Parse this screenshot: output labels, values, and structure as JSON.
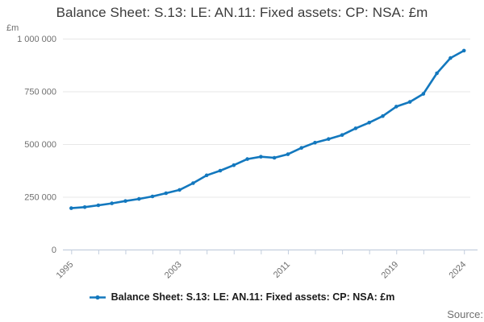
{
  "title": "Balance Sheet: S.13: LE: AN.11: Fixed assets: CP: NSA: £m",
  "y_axis_unit": "£m",
  "legend": {
    "label": "Balance Sheet: S.13: LE: AN.11: Fixed assets: CP: NSA: £m",
    "marker": "line-with-dot-icon"
  },
  "source_label": "Source:",
  "colors": {
    "line": "#1378be",
    "grid": "#e7e7e7",
    "axis": "#c3cede",
    "tick_text": "#6f6f6f",
    "title_text": "#3b3b3b"
  },
  "chart_data": {
    "type": "line",
    "title": "Balance Sheet: S.13: LE: AN.11: Fixed assets: CP: NSA: £m",
    "xlabel": "",
    "ylabel": "£m",
    "ylim": [
      0,
      1000000
    ],
    "grid": true,
    "legend_position": "bottom",
    "x": [
      1995,
      1996,
      1997,
      1998,
      1999,
      2000,
      2001,
      2002,
      2003,
      2004,
      2005,
      2006,
      2007,
      2008,
      2009,
      2010,
      2011,
      2012,
      2013,
      2014,
      2015,
      2016,
      2017,
      2018,
      2019,
      2020,
      2021,
      2022,
      2023,
      2024
    ],
    "values": [
      196000,
      201000,
      210000,
      219000,
      230000,
      240000,
      252000,
      267000,
      283000,
      315000,
      352000,
      374000,
      400000,
      429000,
      440000,
      435000,
      452000,
      482000,
      507000,
      524000,
      543000,
      575000,
      602000,
      633000,
      678000,
      700000,
      738000,
      836000,
      908000,
      943000
    ],
    "series_name": "Balance Sheet: S.13: LE: AN.11: Fixed assets: CP: NSA: £m",
    "y_ticks": [
      0,
      250000,
      500000,
      750000,
      1000000
    ],
    "y_tick_labels": [
      "0",
      "250 000",
      "500 000",
      "750 000",
      "1 000 000"
    ],
    "x_ticks": [
      1995,
      1997,
      1999,
      2001,
      2003,
      2005,
      2007,
      2009,
      2011,
      2013,
      2015,
      2017,
      2019,
      2021,
      2024
    ],
    "x_labeled_ticks": [
      1995,
      2003,
      2011,
      2019,
      2024
    ]
  }
}
